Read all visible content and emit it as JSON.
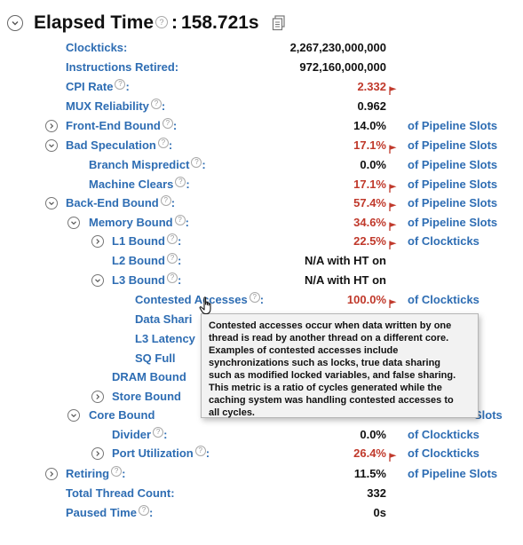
{
  "header": {
    "title": "Elapsed Time",
    "help": "?",
    "separator": ":",
    "value": "158.721s",
    "copy_icon": "copy-icon",
    "toggle_icon": "chevron-down-icon"
  },
  "colors": {
    "link": "#2e6db3",
    "warning": "#c0392b",
    "text": "#111111",
    "tooltip_bg": "#f2f2f2"
  },
  "rows": [
    {
      "label": "Clockticks:",
      "value": "2,267,230,000,000"
    },
    {
      "label": "Instructions Retired:",
      "value": "972,160,000,000"
    },
    {
      "label": "CPI Rate",
      "value": "2.332",
      "help": "?",
      "colon": ":",
      "flag": true
    },
    {
      "label": "MUX Reliability",
      "value": "0.962",
      "help": "?",
      "colon": ":"
    },
    {
      "label": "Front-End Bound",
      "value": "14.0%",
      "help": "?",
      "colon": ":",
      "unit": "of Pipeline Slots",
      "toggle": "chevron-right-icon"
    },
    {
      "label": "Bad Speculation",
      "value": "17.1%",
      "help": "?",
      "colon": ":",
      "unit": "of Pipeline Slots",
      "flag": true,
      "toggle": "chevron-down-icon"
    },
    {
      "label": "Branch Mispredict",
      "value": "0.0%",
      "help": "?",
      "colon": ":",
      "unit": "of Pipeline Slots"
    },
    {
      "label": "Machine Clears",
      "value": "17.1%",
      "help": "?",
      "colon": ":",
      "unit": "of Pipeline Slots",
      "flag": true
    },
    {
      "label": "Back-End Bound",
      "value": "57.4%",
      "help": "?",
      "colon": ":",
      "unit": "of Pipeline Slots",
      "flag": true,
      "toggle": "chevron-down-icon"
    },
    {
      "label": "Memory Bound",
      "value": "34.6%",
      "help": "?",
      "colon": ":",
      "unit": "of Pipeline Slots",
      "flag": true,
      "toggle": "chevron-down-icon"
    },
    {
      "label": "L1 Bound",
      "value": "22.5%",
      "help": "?",
      "colon": ":",
      "unit": "of Clockticks",
      "flag": true,
      "toggle": "chevron-right-icon"
    },
    {
      "label": "L2 Bound",
      "value": "N/A with HT on",
      "help": "?",
      "colon": ":"
    },
    {
      "label": "L3 Bound",
      "value": "N/A with HT on",
      "help": "?",
      "colon": ":",
      "toggle": "chevron-down-icon"
    },
    {
      "label": "Contested Accesses",
      "value": "100.0%",
      "help": "?",
      "colon": ":",
      "unit": "of Clockticks",
      "flag": true
    },
    {
      "label": "Data Shari",
      "value": ""
    },
    {
      "label": "L3 Latency",
      "value": ""
    },
    {
      "label": "SQ Full",
      "value": ""
    },
    {
      "label": "DRAM Bound",
      "value": ""
    },
    {
      "label": "Store Bound",
      "value": "",
      "toggle": "chevron-right-icon"
    },
    {
      "label": "Core Bound",
      "value": "",
      "unit": "Slots",
      "toggle": "chevron-down-icon"
    },
    {
      "label": "Divider",
      "value": "0.0%",
      "help": "?",
      "colon": ":",
      "unit": "of Clockticks"
    },
    {
      "label": "Port Utilization",
      "value": "26.4%",
      "help": "?",
      "colon": ":",
      "unit": "of Clockticks",
      "flag": true,
      "toggle": "chevron-right-icon"
    },
    {
      "label": "Retiring",
      "value": "11.5%",
      "help": "?",
      "colon": ":",
      "unit": "of Pipeline Slots",
      "toggle": "chevron-right-icon"
    },
    {
      "label": "Total Thread Count:",
      "value": "332"
    },
    {
      "label": "Paused Time",
      "value": "0s",
      "help": "?",
      "colon": ":"
    }
  ],
  "tooltip": {
    "lines": [
      "Contested accesses occur when data written by one",
      "thread is read by another thread on a different core.",
      "Examples of contested accesses include",
      "synchronizations such as locks, true data sharing",
      "such as modified locked variables, and false sharing.",
      "This metric is a ratio of cycles generated while the",
      "caching system was handling contested accesses to",
      "all cycles."
    ]
  }
}
